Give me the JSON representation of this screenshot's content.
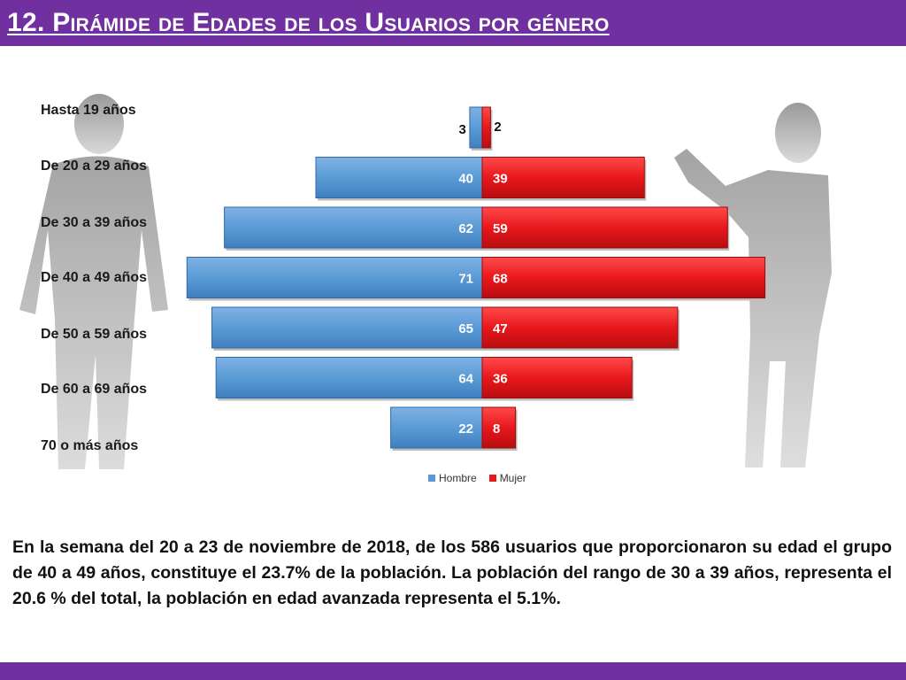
{
  "slide": {
    "title": "12. Pirámide de Edades de los Usuarios por género",
    "description": "En la semana del 20 a 23 de noviembre de 2018, de los 586 usuarios  que proporcionaron su edad el grupo de 40 a 49 años, constituye el 23.7% de la población. La población del rango de 30 a 39 años, representa el 20.6 % del total, la población en edad avanzada representa el 5.1%."
  },
  "colors": {
    "accent": "#7030a0",
    "hombre": "#5b9bd5",
    "mujer": "#e8181b"
  },
  "chart_data": {
    "type": "bar",
    "orientation": "horizontal-pyramid",
    "categories": [
      "Hasta 19 años",
      "De 20 a 29 años",
      "De 30 a 39 años",
      "De 40 a 49 años",
      "De 50 a 59 años",
      "De 60 a 69 años",
      "70 o más años"
    ],
    "series": [
      {
        "name": "Hombre",
        "values": [
          3,
          40,
          62,
          71,
          65,
          64,
          22
        ]
      },
      {
        "name": "Mujer",
        "values": [
          2,
          39,
          59,
          68,
          47,
          36,
          8
        ]
      }
    ],
    "legend": [
      "Hombre",
      "Mujer"
    ],
    "legend_position": "bottom",
    "xlim": [
      -75,
      75
    ]
  }
}
